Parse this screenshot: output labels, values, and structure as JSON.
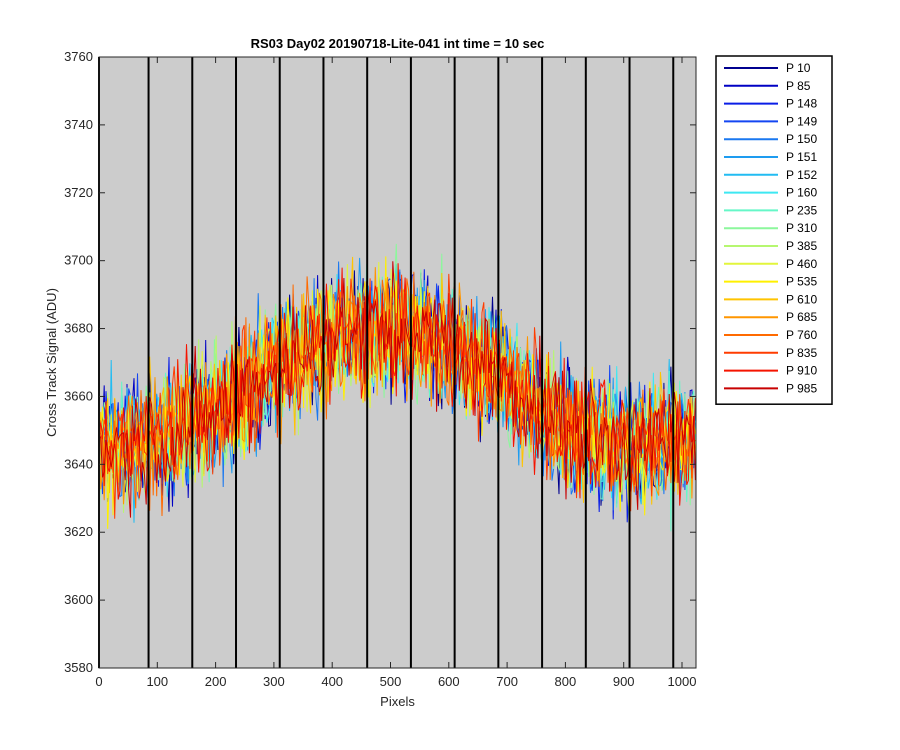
{
  "chart_data": {
    "type": "line",
    "title": "RS03 Day02 20190718-Lite-041 int time = 10 sec",
    "xlabel": "Pixels",
    "ylabel": "Cross Track Signal (ADU)",
    "xlim": [
      0,
      1024
    ],
    "ylim": [
      3580,
      3760
    ],
    "xticks": [
      0,
      100,
      200,
      300,
      400,
      500,
      600,
      700,
      800,
      900,
      1000
    ],
    "yticks": [
      3580,
      3600,
      3620,
      3640,
      3660,
      3680,
      3700,
      3720,
      3740,
      3760
    ],
    "background_color": "#cccccc",
    "vertical_markers": [
      0,
      85,
      160,
      235,
      310,
      385,
      460,
      535,
      610,
      685,
      760,
      835,
      910,
      985
    ],
    "legend_position": "outside-right",
    "profile_shape": {
      "x": [
        0,
        100,
        200,
        300,
        400,
        500,
        600,
        700,
        800,
        900,
        1023
      ],
      "mean": [
        3645,
        3648,
        3655,
        3668,
        3678,
        3680,
        3675,
        3665,
        3650,
        3645,
        3648
      ]
    },
    "noise_amplitude_adu": 15,
    "series": [
      {
        "name": "P 10",
        "color": "#00008f"
      },
      {
        "name": "P 85",
        "color": "#0000c4"
      },
      {
        "name": "P 148",
        "color": "#0a1ee6"
      },
      {
        "name": "P 149",
        "color": "#1446f2"
      },
      {
        "name": "P 150",
        "color": "#1a78f0"
      },
      {
        "name": "P 151",
        "color": "#1e9cf0"
      },
      {
        "name": "P 152",
        "color": "#22bcf2"
      },
      {
        "name": "P 160",
        "color": "#3ee8f2"
      },
      {
        "name": "P 235",
        "color": "#66f7c8"
      },
      {
        "name": "P 310",
        "color": "#8cf79c"
      },
      {
        "name": "P 385",
        "color": "#b6f770"
      },
      {
        "name": "P 460",
        "color": "#e2f53c"
      },
      {
        "name": "P 535",
        "color": "#fff000"
      },
      {
        "name": "P 610",
        "color": "#ffc400"
      },
      {
        "name": "P 685",
        "color": "#ff9600"
      },
      {
        "name": "P 760",
        "color": "#ff6a00"
      },
      {
        "name": "P 835",
        "color": "#ff3c00"
      },
      {
        "name": "P 910",
        "color": "#f51400"
      },
      {
        "name": "P 985",
        "color": "#c80000"
      }
    ]
  }
}
